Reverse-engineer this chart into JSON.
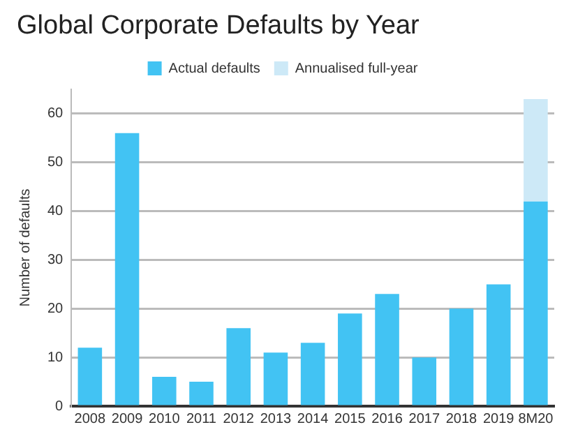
{
  "chart_data": {
    "type": "bar",
    "title": "Global Corporate Defaults by Year",
    "ylabel": "Number of defaults",
    "categories": [
      "2008",
      "2009",
      "2010",
      "2011",
      "2012",
      "2013",
      "2014",
      "2015",
      "2016",
      "2017",
      "2018",
      "2019",
      "8M20"
    ],
    "series": [
      {
        "name": "Actual defaults",
        "color": "#42c3f3",
        "values": [
          12,
          56,
          6,
          5,
          16,
          11,
          13,
          19,
          23,
          10,
          20,
          25,
          42
        ]
      },
      {
        "name": "Annualised full-year",
        "color": "#cde9f7",
        "values": [
          null,
          null,
          null,
          null,
          null,
          null,
          null,
          null,
          null,
          null,
          null,
          null,
          21
        ]
      }
    ],
    "stacked": true,
    "ylim": [
      0,
      65
    ],
    "yticks": [
      0,
      10,
      20,
      30,
      40,
      50,
      60
    ],
    "grid": "y",
    "legend": "top"
  }
}
